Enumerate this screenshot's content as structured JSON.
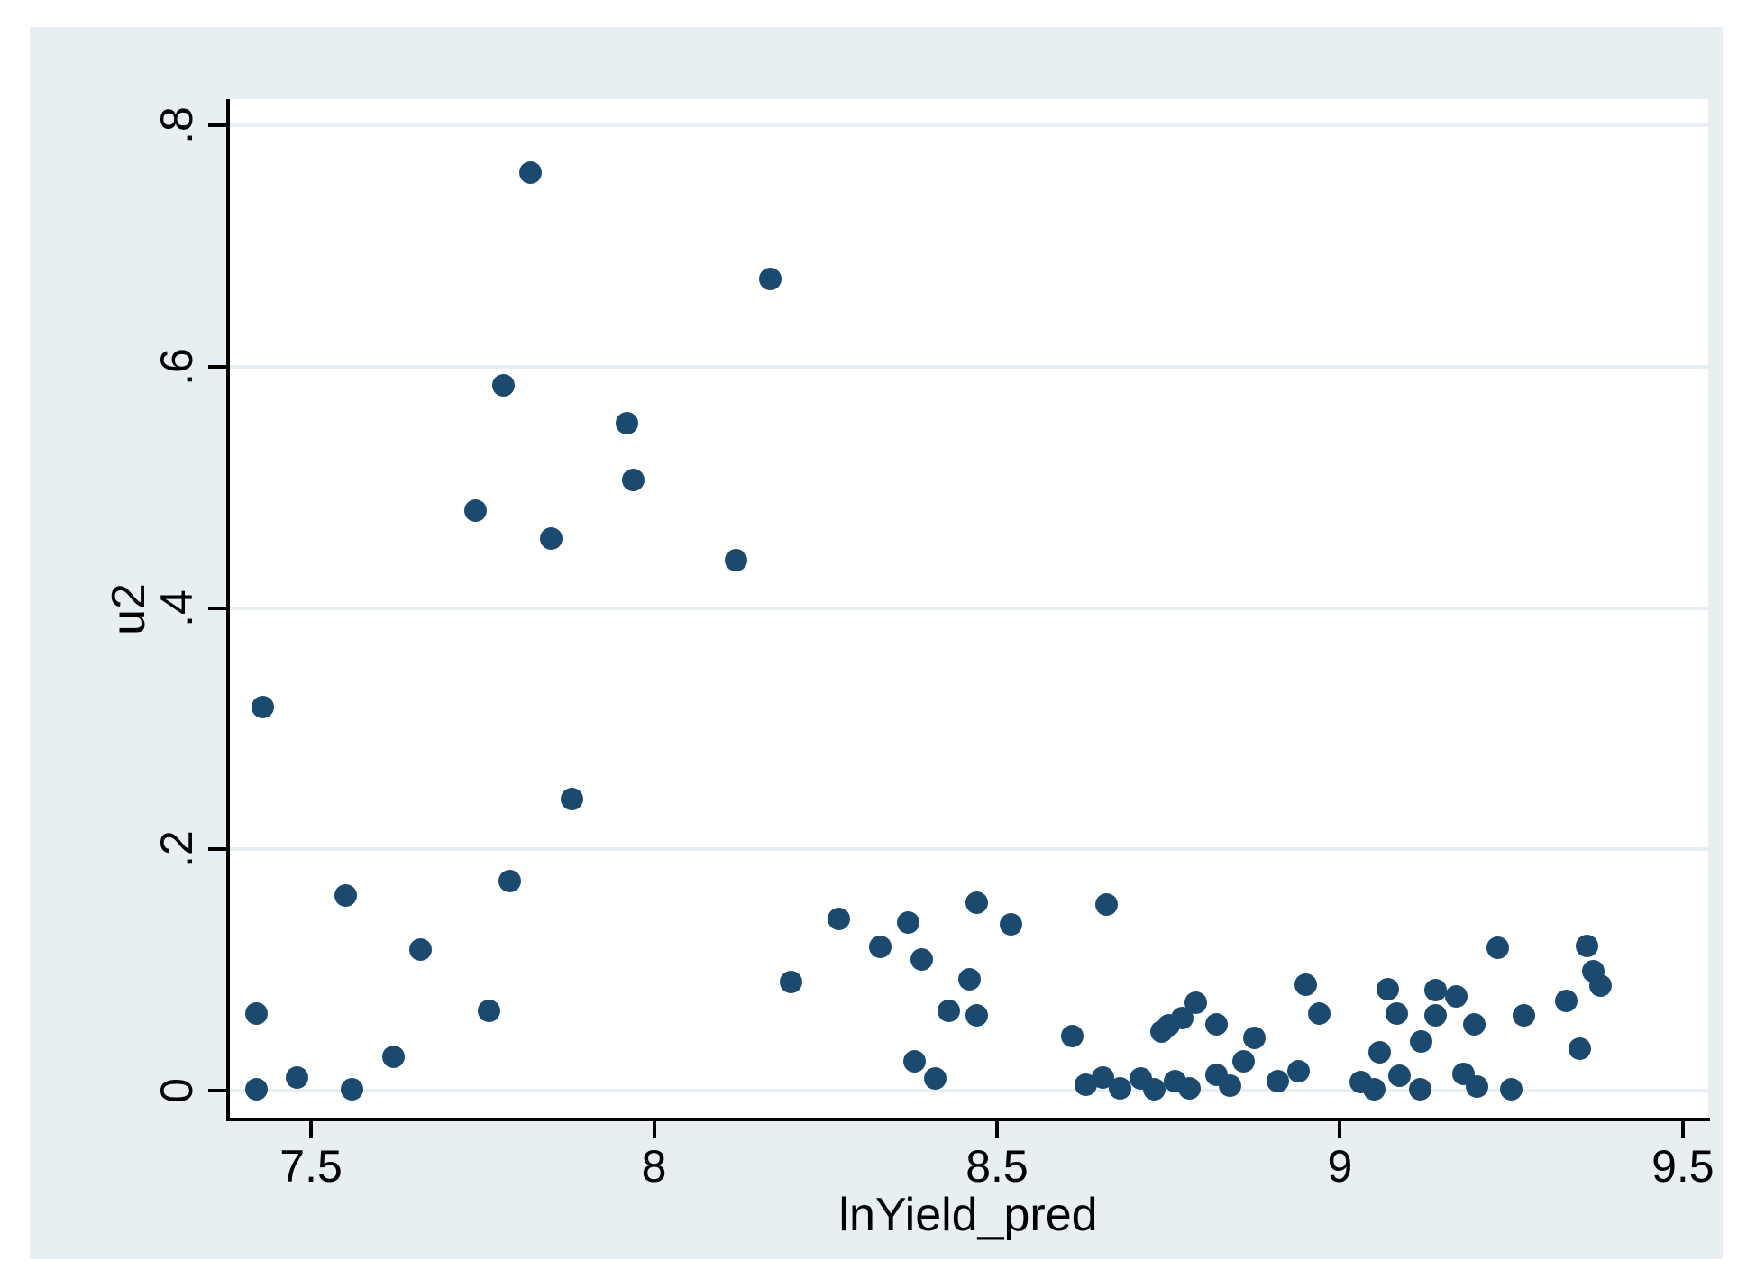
{
  "chart_data": {
    "type": "scatter",
    "title": "",
    "xlabel": "lnYield_pred",
    "ylabel": "u2",
    "xlim": [
      7.379,
      9.537
    ],
    "ylim": [
      -0.024,
      0.822
    ],
    "grid": "horizontal",
    "legend": "none",
    "marker_color": "#1c4a6e",
    "figure_background": "#e8eff2",
    "plot_background": "#ffffff",
    "axis_color": "#000000",
    "x_ticks": [
      {
        "v": 7.5,
        "label": "7.5"
      },
      {
        "v": 8,
        "label": "8"
      },
      {
        "v": 8.5,
        "label": "8.5"
      },
      {
        "v": 9,
        "label": "9"
      },
      {
        "v": 9.5,
        "label": "9.5"
      }
    ],
    "y_ticks": [
      {
        "v": 0,
        "label": "0"
      },
      {
        "v": 0.2,
        "label": ".2"
      },
      {
        "v": 0.4,
        "label": ".4"
      },
      {
        "v": 0.6,
        "label": ".6"
      },
      {
        "v": 0.8,
        "label": ".8"
      }
    ],
    "points": [
      [
        7.42,
        0.064
      ],
      [
        7.42,
        0.001
      ],
      [
        7.43,
        0.318
      ],
      [
        7.48,
        0.011
      ],
      [
        7.55,
        0.162
      ],
      [
        7.56,
        0.001
      ],
      [
        7.62,
        0.028
      ],
      [
        7.66,
        0.117
      ],
      [
        7.74,
        0.481
      ],
      [
        7.76,
        0.066
      ],
      [
        7.78,
        0.585
      ],
      [
        7.79,
        0.174
      ],
      [
        7.82,
        0.761
      ],
      [
        7.85,
        0.458
      ],
      [
        7.88,
        0.242
      ],
      [
        7.96,
        0.553
      ],
      [
        7.97,
        0.506
      ],
      [
        8.12,
        0.44
      ],
      [
        8.17,
        0.673
      ],
      [
        8.2,
        0.09
      ],
      [
        8.27,
        0.142
      ],
      [
        8.33,
        0.119
      ],
      [
        8.37,
        0.139
      ],
      [
        8.38,
        0.024
      ],
      [
        8.39,
        0.109
      ],
      [
        8.41,
        0.01
      ],
      [
        8.43,
        0.066
      ],
      [
        8.46,
        0.092
      ],
      [
        8.47,
        0.156
      ],
      [
        8.47,
        0.062
      ],
      [
        8.52,
        0.138
      ],
      [
        8.61,
        0.045
      ],
      [
        8.63,
        0.005
      ],
      [
        8.655,
        0.011
      ],
      [
        8.66,
        0.154
      ],
      [
        8.68,
        0.002
      ],
      [
        8.71,
        0.01
      ],
      [
        8.73,
        0.001
      ],
      [
        8.74,
        0.049
      ],
      [
        8.75,
        0.054
      ],
      [
        8.76,
        0.008
      ],
      [
        8.77,
        0.06
      ],
      [
        8.78,
        0.002
      ],
      [
        8.79,
        0.073
      ],
      [
        8.82,
        0.055
      ],
      [
        8.82,
        0.013
      ],
      [
        8.84,
        0.004
      ],
      [
        8.86,
        0.024
      ],
      [
        8.875,
        0.044
      ],
      [
        8.91,
        0.008
      ],
      [
        8.94,
        0.016
      ],
      [
        8.95,
        0.088
      ],
      [
        8.97,
        0.064
      ],
      [
        9.03,
        0.007
      ],
      [
        9.05,
        0.001
      ],
      [
        9.058,
        0.032
      ],
      [
        9.07,
        0.084
      ],
      [
        9.083,
        0.064
      ],
      [
        9.087,
        0.012
      ],
      [
        9.117,
        0.001
      ],
      [
        9.118,
        0.041
      ],
      [
        9.14,
        0.083
      ],
      [
        9.139,
        0.062
      ],
      [
        9.17,
        0.078
      ],
      [
        9.18,
        0.014
      ],
      [
        9.196,
        0.055
      ],
      [
        9.2,
        0.003
      ],
      [
        9.23,
        0.118
      ],
      [
        9.25,
        0.001
      ],
      [
        9.268,
        0.062
      ],
      [
        9.33,
        0.074
      ],
      [
        9.35,
        0.035
      ],
      [
        9.36,
        0.12
      ],
      [
        9.37,
        0.099
      ],
      [
        9.38,
        0.087
      ]
    ]
  }
}
